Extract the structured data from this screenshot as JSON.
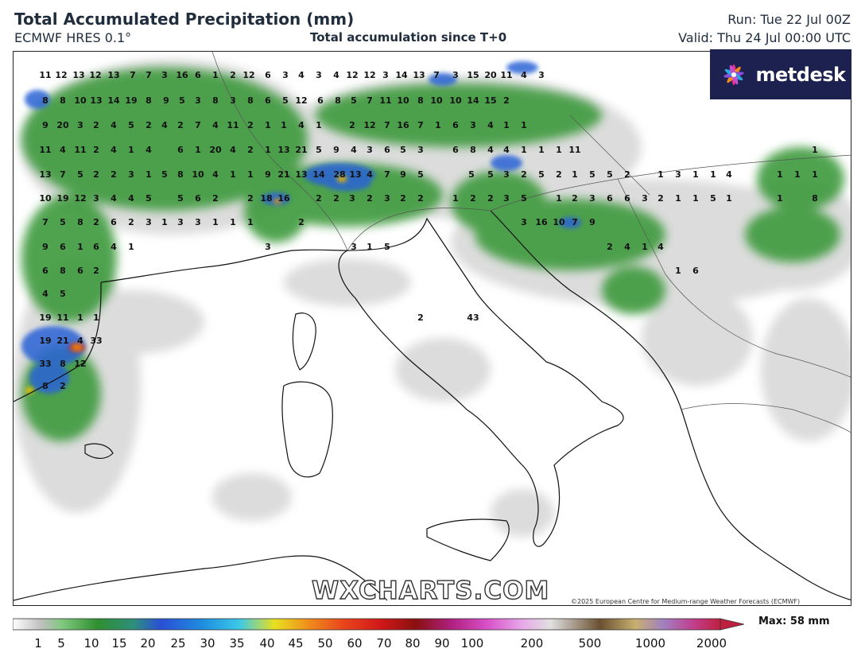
{
  "header": {
    "title": "Total Accumulated Precipitation (mm)",
    "subtitle": "ECMWF HRES 0.1°",
    "center_label": "Total accumulation since T+0",
    "run": "Run: Tue 22 Jul 00Z",
    "valid": "Valid: Thu 24 Jul 00:00 UTC"
  },
  "logo": {
    "text": "metdesk",
    "icon": "metdesk-flower-icon",
    "bg_color": "#1d2150"
  },
  "watermark": "WXCHARTS.COM",
  "copyright": "©2025 European Centre for Medium-range Weather Forecasts (ECMWF)",
  "colorbar": {
    "max_label": "Max: 58 mm",
    "tick_labels": [
      "1",
      "5",
      "10",
      "15",
      "20",
      "25",
      "30",
      "35",
      "40",
      "45",
      "50",
      "60",
      "70",
      "80",
      "90",
      "100",
      "200",
      "500",
      "1000",
      "2000"
    ]
  },
  "map": {
    "region": "Western Mediterranean / Italy / Balkans",
    "colors": {
      "land_border": "#000000",
      "light_precip": "#d9d9d9",
      "green_precip": "#3d9a3d",
      "blue_precip": "#2a62d6",
      "heavy_precip": "#c81e1e"
    },
    "point_values": [
      "11",
      "12",
      "13",
      "12",
      "13",
      "7",
      "7",
      "3",
      "16",
      "6",
      "1",
      "2",
      "12",
      "6",
      "3",
      "4",
      "3",
      "4",
      "12",
      "12",
      "3",
      "14",
      "13",
      "7",
      "3",
      "15",
      "20",
      "11",
      "4",
      "3",
      "8",
      "8",
      "10",
      "13",
      "14",
      "19",
      "8",
      "9",
      "5",
      "3",
      "8",
      "3",
      "8",
      "6",
      "5",
      "12",
      "6",
      "8",
      "5",
      "7",
      "11",
      "10",
      "8",
      "10",
      "10",
      "14",
      "15",
      "2",
      "9",
      "20",
      "3",
      "2",
      "4",
      "5",
      "2",
      "4",
      "2",
      "7",
      "4",
      "11",
      "2",
      "1",
      "1",
      "4",
      "1",
      "2",
      "12",
      "7",
      "16",
      "7",
      "1",
      "6",
      "3",
      "4",
      "1",
      "1",
      "11",
      "4",
      "11",
      "2",
      "4",
      "1",
      "4",
      "6",
      "1",
      "20",
      "4",
      "2",
      "1",
      "13",
      "21",
      "5",
      "9",
      "4",
      "3",
      "6",
      "5",
      "3",
      "6",
      "8",
      "4",
      "4",
      "1",
      "1",
      "1",
      "11",
      "1",
      "13",
      "7",
      "5",
      "2",
      "2",
      "3",
      "1",
      "5",
      "8",
      "10",
      "4",
      "1",
      "1",
      "9",
      "21",
      "13",
      "14",
      "28",
      "13",
      "4",
      "7",
      "9",
      "5",
      "5",
      "5",
      "3",
      "2",
      "5",
      "2",
      "1",
      "5",
      "5",
      "2",
      "1",
      "3",
      "1",
      "1",
      "4",
      "1",
      "1",
      "1",
      "10",
      "19",
      "12",
      "3",
      "4",
      "4",
      "5",
      "5",
      "6",
      "2",
      "2",
      "18",
      "16",
      "2",
      "2",
      "3",
      "2",
      "3",
      "2",
      "2",
      "1",
      "2",
      "2",
      "3",
      "5",
      "1",
      "2",
      "3",
      "6",
      "6",
      "3",
      "2",
      "1",
      "1",
      "5",
      "1",
      "1",
      "8",
      "7",
      "5",
      "8",
      "2",
      "6",
      "2",
      "3",
      "1",
      "3",
      "3",
      "1",
      "1",
      "1",
      "2",
      "3",
      "16",
      "10",
      "7",
      "9",
      "9",
      "6",
      "1",
      "6",
      "4",
      "1",
      "3",
      "3",
      "1",
      "5",
      "2",
      "4",
      "1",
      "4",
      "6",
      "8",
      "6",
      "2",
      "1",
      "6",
      "4",
      "5",
      "19",
      "11",
      "1",
      "1",
      "2",
      "43",
      "19",
      "21",
      "4",
      "33",
      "33",
      "8",
      "12",
      "8",
      "2"
    ]
  }
}
